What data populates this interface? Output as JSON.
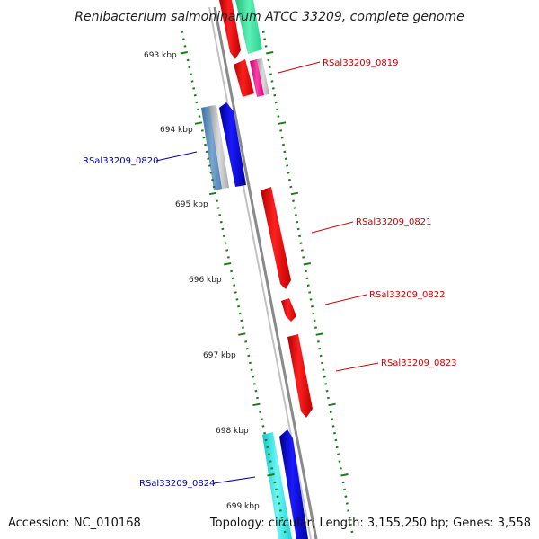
{
  "title": "Renibacterium salmoninarum ATCC 33209, complete genome",
  "footer": {
    "accession": "Accession: NC_010168",
    "summary": "Topology: circular; Length: 3,155,250 bp; Genes: 3,558"
  },
  "ruler": [
    "693 kbp",
    "694 kbp",
    "695 kbp",
    "696 kbp",
    "697 kbp",
    "698 kbp",
    "699 kbp"
  ],
  "gene_labels": [
    {
      "id": "RSal33209_0819",
      "strand": "reverse"
    },
    {
      "id": "RSal33209_0820",
      "strand": "forward"
    },
    {
      "id": "RSal33209_0821",
      "strand": "reverse"
    },
    {
      "id": "RSal33209_0822",
      "strand": "reverse"
    },
    {
      "id": "RSal33209_0823",
      "strand": "reverse"
    },
    {
      "id": "RSal33209_0824",
      "strand": "forward"
    }
  ],
  "colors": {
    "backbone": "#7a7a7a",
    "reverse_gene": "#ff0000",
    "forward_gene": "#0000dd",
    "reverse_label": "#cc0000",
    "forward_label": "#0000aa",
    "tick": "#1e7a1e",
    "cds_green": "#3fe0a0",
    "cds_magenta": "#e0108a",
    "cds_steel": "#4a7fb0",
    "cds_cyan": "#22e0e0"
  }
}
